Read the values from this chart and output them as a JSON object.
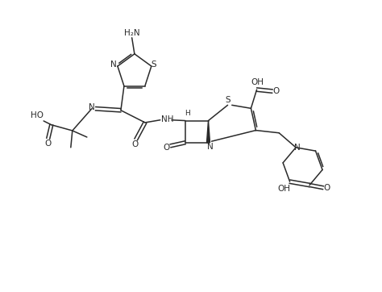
{
  "bg_color": "#ffffff",
  "line_color": "#2a2a2a",
  "figsize": [
    4.74,
    3.62
  ],
  "dpi": 100,
  "fs": 7.5,
  "lw": 1.1,
  "xlim": [
    -1.0,
    8.5
  ],
  "ylim": [
    -3.5,
    5.5
  ]
}
